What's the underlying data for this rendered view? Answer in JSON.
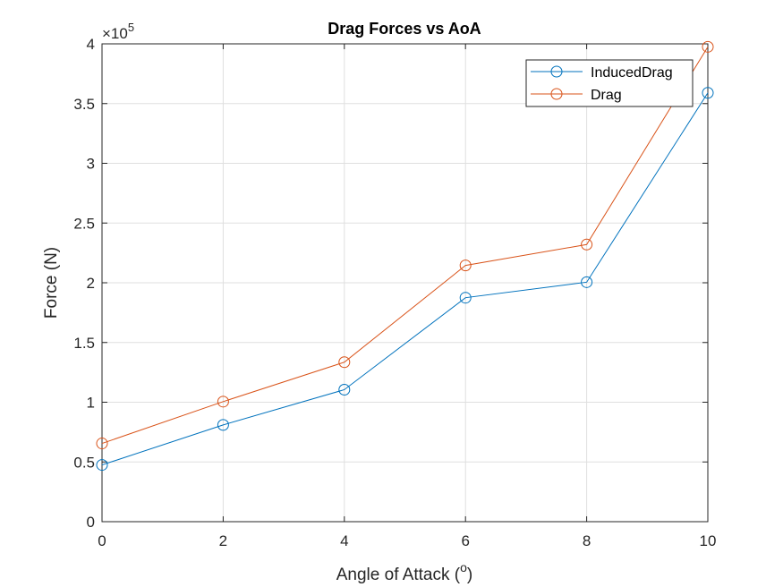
{
  "chart_data": {
    "type": "line",
    "title": "Drag Forces vs AoA",
    "xlabel": "Angle of Attack (o)",
    "xlabel_main": "Angle of Attack (",
    "xlabel_super": "o",
    "xlabel_close": ")",
    "ylabel": "Force (N)",
    "y_exponent_base": "×10",
    "y_exponent_power": "5",
    "xlim": [
      0,
      10
    ],
    "ylim": [
      0,
      400000
    ],
    "x_ticks": [
      0,
      2,
      4,
      6,
      8,
      10
    ],
    "x_tick_labels": [
      "0",
      "2",
      "4",
      "6",
      "8",
      "10"
    ],
    "y_ticks": [
      0,
      50000,
      100000,
      150000,
      200000,
      250000,
      300000,
      350000,
      400000
    ],
    "y_tick_labels": [
      "0",
      "0.5",
      "1",
      "1.5",
      "2",
      "2.5",
      "3",
      "3.5",
      "4"
    ],
    "grid": true,
    "legend_position": "top-right",
    "marker": "circle",
    "x": [
      0,
      2,
      4,
      6,
      8,
      10
    ],
    "series": [
      {
        "name": "InducedDrag",
        "color": "#0072bd",
        "values": [
          47500,
          81000,
          110500,
          187500,
          200500,
          359000
        ]
      },
      {
        "name": "Drag",
        "color": "#d95319",
        "values": [
          65500,
          100500,
          133500,
          214500,
          232000,
          397500
        ]
      }
    ]
  }
}
